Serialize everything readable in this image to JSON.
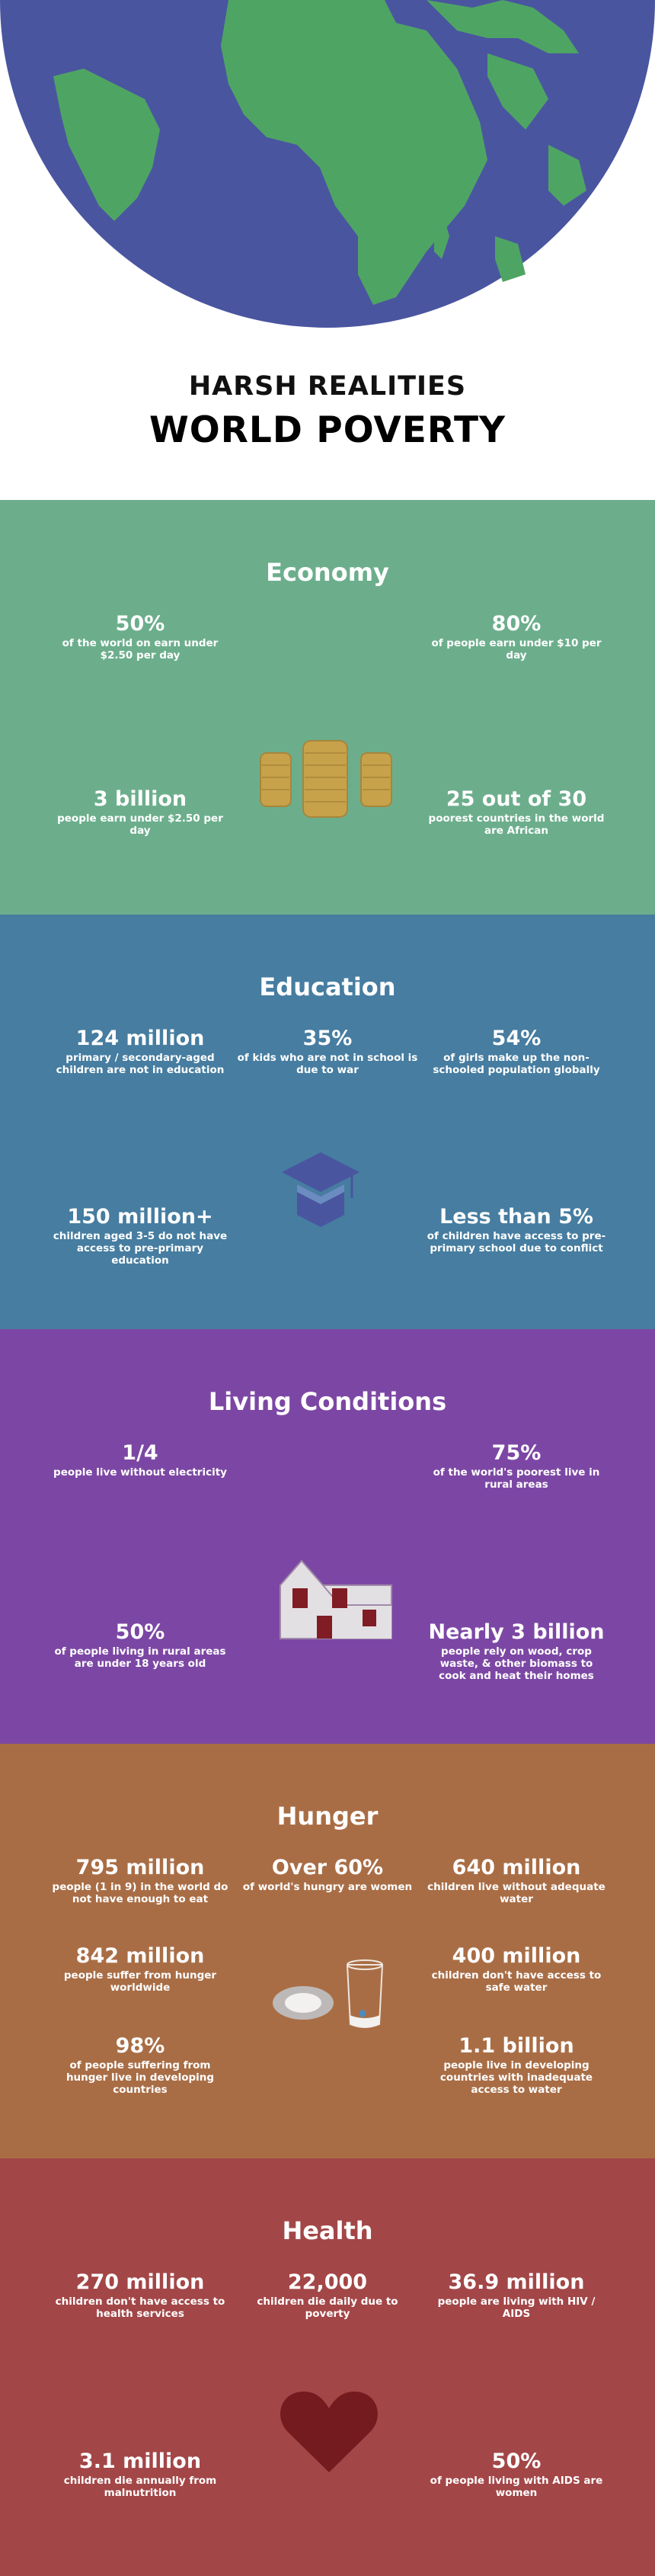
{
  "header": {
    "subtitle": "HARSH REALITIES",
    "title": "WORLD POVERTY",
    "globe_icon": "globe-icon"
  },
  "colors": {
    "economy": "#6cae8c",
    "education": "#467da0",
    "living": "#7c47a4",
    "hunger": "#a96d45",
    "health": "#a34647",
    "ocean": "#4a55a0",
    "land": "#4ea563"
  },
  "economy": {
    "title": "Economy",
    "icon": "coins-icon",
    "stats": [
      {
        "num": "50%",
        "desc": "of the world on earn under $2.50 per day"
      },
      {
        "num": "80%",
        "desc": "of people earn under $10 per day"
      },
      {
        "num": "3 billion",
        "desc": "people earn under $2.50 per day"
      },
      {
        "num": "25 out of 30",
        "desc": "poorest countries in the world are African"
      }
    ]
  },
  "education": {
    "title": "Education",
    "icon": "graduation-cap-icon",
    "stats": [
      {
        "num": "124 million",
        "desc": "primary / secondary-aged children are not in education"
      },
      {
        "num": "35%",
        "desc": "of kids who are not in school is due to war"
      },
      {
        "num": "54%",
        "desc": "of girls make up the non-schooled population globally"
      },
      {
        "num": "150 million+",
        "desc": "children aged 3-5 do not have access to pre-primary education"
      },
      {
        "num": "Less than 5%",
        "desc": "of children have access to pre-primary school due to conflict"
      }
    ]
  },
  "living": {
    "title": "Living Conditions",
    "icon": "house-icon",
    "stats": [
      {
        "num": "1/4",
        "desc": "people live without electricity"
      },
      {
        "num": "75%",
        "desc": "of the world's poorest live in rural areas"
      },
      {
        "num": "50%",
        "desc": "of people living in rural areas are under 18 years old"
      },
      {
        "num": "Nearly 3 billion",
        "desc": "people rely on wood, crop waste, & other biomass to cook and heat their homes"
      }
    ]
  },
  "hunger": {
    "title": "Hunger",
    "icons": [
      "plate-icon",
      "glass-icon"
    ],
    "stats": [
      {
        "num": "795 million",
        "desc": "people (1 in 9) in the world do not have enough to eat"
      },
      {
        "num": "Over 60%",
        "desc": "of world's hungry are women"
      },
      {
        "num": "640 million",
        "desc": "children live without adequate water"
      },
      {
        "num": "842 million",
        "desc": "people suffer from hunger worldwide"
      },
      {
        "num": "400 million",
        "desc": "children don't have access to safe water"
      },
      {
        "num": "98%",
        "desc": "of people suffering from hunger live in developing countries"
      },
      {
        "num": "1.1 billion",
        "desc": "people live in developing countries with inadequate access to water"
      }
    ]
  },
  "health": {
    "title": "Health",
    "icon": "heart-icon",
    "stats": [
      {
        "num": "270 million",
        "desc": "children don't have access to health services"
      },
      {
        "num": "22,000",
        "desc": "children die daily due to poverty"
      },
      {
        "num": "36.9 million",
        "desc": "people are living with HIV / AIDS"
      },
      {
        "num": "3.1 million",
        "desc": "children die annually from malnutrition"
      },
      {
        "num": "50%",
        "desc": "of people living with AIDS are women"
      }
    ]
  }
}
